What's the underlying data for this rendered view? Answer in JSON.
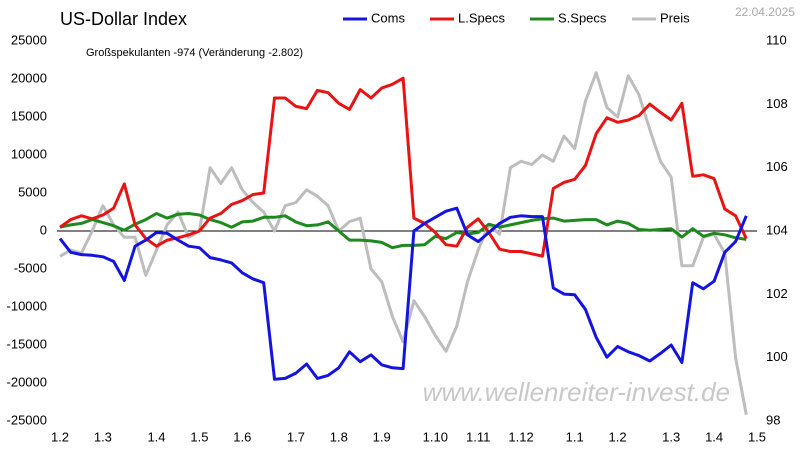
{
  "chart_data": {
    "type": "line",
    "title": "US-Dollar Index",
    "date": "22.04.2025",
    "annotation": "Großspekulanten -974  (Veränderung -2.802)",
    "watermark": "www.wellenreiter-invest.de",
    "categories": [
      "1.2",
      null,
      null,
      null,
      "1.3",
      null,
      null,
      null,
      null,
      "1.4",
      null,
      null,
      null,
      "1.5",
      null,
      null,
      null,
      "1.6",
      null,
      null,
      null,
      null,
      "1.7",
      null,
      null,
      null,
      "1.8",
      null,
      null,
      null,
      "1.9",
      null,
      null,
      null,
      null,
      "1.10",
      null,
      null,
      null,
      "1.11",
      null,
      null,
      null,
      "1.12",
      null,
      null,
      null,
      null,
      "1.1",
      null,
      null,
      null,
      "1.2",
      null,
      null,
      null,
      null,
      "1.3",
      null,
      null,
      null,
      "1.4",
      null,
      null,
      null,
      "1.5"
    ],
    "series": [
      {
        "name": "Coms",
        "color": "#1414e0",
        "values": [
          -1000,
          -2800,
          -3100,
          -3200,
          -3400,
          -4000,
          -6500,
          -2000,
          -1200,
          -200,
          -300,
          -1200,
          -2000,
          -2200,
          -3500,
          -3800,
          -4200,
          -5500,
          -6300,
          -6800,
          -19500,
          -19400,
          -18700,
          -17500,
          -19400,
          -19000,
          -18000,
          -15900,
          -17200,
          -16300,
          -17600,
          -18000,
          -18100,
          0,
          1000,
          1800,
          2600,
          3000,
          -500,
          -1400,
          -200,
          1000,
          1800,
          2000,
          1900,
          1900,
          -7500,
          -8300,
          -8400,
          -10300,
          -14000,
          -16600,
          -15200,
          -15900,
          -16400,
          -17100,
          -16100,
          -15000,
          -17300,
          -6800,
          -7600,
          -6600,
          -2800,
          -1400,
          2000,
          null
        ]
      },
      {
        "name": "L.Specs",
        "color": "#e81414",
        "values": [
          500,
          1500,
          2000,
          1600,
          2100,
          3000,
          6200,
          800,
          -1000,
          -2000,
          -1200,
          -900,
          -500,
          0,
          1700,
          2300,
          3500,
          4000,
          4800,
          5000,
          17500,
          17500,
          16400,
          16100,
          18500,
          18200,
          16800,
          16000,
          18600,
          17500,
          18800,
          19300,
          20100,
          1700,
          1000,
          -200,
          -1800,
          -2000,
          500,
          1600,
          -200,
          -2400,
          -2700,
          -2700,
          -3000,
          -3300,
          5600,
          6400,
          6800,
          8600,
          12800,
          14900,
          14300,
          14600,
          15200,
          16700,
          15600,
          14600,
          16800,
          7200,
          7400,
          6900,
          2900,
          2000,
          -1000,
          null
        ]
      },
      {
        "name": "S.Specs",
        "color": "#1e8a1e",
        "values": [
          500,
          800,
          1000,
          1500,
          1100,
          700,
          100,
          900,
          1500,
          2300,
          1700,
          2200,
          2300,
          2100,
          1500,
          1100,
          500,
          1200,
          1300,
          1800,
          1800,
          2000,
          1200,
          700,
          800,
          1200,
          0,
          -1200,
          -1200,
          -1300,
          -1500,
          -2200,
          -1900,
          -1900,
          -1800,
          -700,
          -1000,
          -200,
          -400,
          -200,
          900,
          500,
          800,
          1100,
          1400,
          1600,
          1700,
          1300,
          1400,
          1500,
          1500,
          800,
          1300,
          1000,
          200,
          100,
          200,
          300,
          -800,
          300,
          -700,
          -300,
          -500,
          -900,
          -1100,
          null
        ]
      },
      {
        "name": "Preis",
        "color": "#bdbdbd",
        "axis": "y2",
        "values": [
          103.2,
          103.4,
          103.3,
          104.0,
          104.8,
          104.2,
          103.8,
          103.8,
          102.6,
          103.4,
          104.2,
          104.6,
          103.8,
          104.0,
          106.0,
          105.5,
          106.0,
          105.3,
          104.9,
          104.6,
          104.0,
          104.8,
          104.9,
          105.3,
          105.1,
          104.8,
          104.0,
          104.3,
          104.4,
          102.8,
          102.4,
          101.3,
          100.5,
          101.8,
          101.3,
          100.7,
          100.2,
          101.0,
          102.4,
          103.4,
          104.2,
          103.9,
          106.0,
          106.2,
          106.1,
          106.4,
          106.2,
          107.0,
          106.6,
          108.1,
          109.0,
          107.9,
          107.6,
          108.9,
          108.3,
          107.2,
          106.2,
          105.7,
          102.9,
          102.9,
          103.8,
          103.9,
          103.3,
          100.0,
          98.2,
          null
        ]
      }
    ],
    "ylim": [
      -25000,
      25000
    ],
    "yticks": [
      -25000,
      -20000,
      -15000,
      -10000,
      -5000,
      0,
      5000,
      10000,
      15000,
      20000,
      25000
    ],
    "y2lim": [
      98,
      110
    ],
    "y2ticks": [
      98,
      100,
      102,
      104,
      106,
      108,
      110
    ],
    "zero_line": true
  }
}
